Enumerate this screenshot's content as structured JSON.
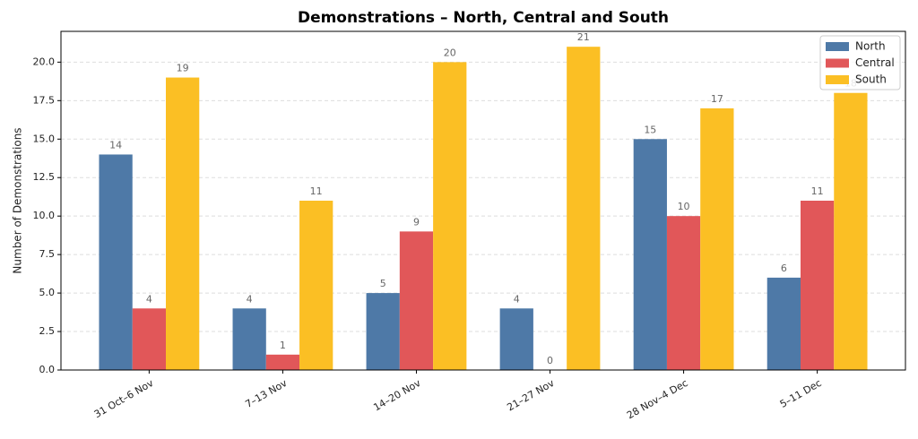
{
  "chart_data": {
    "type": "bar",
    "title": "Demonstrations – North, Central and South",
    "y_label": "Number of Demonstrations",
    "categories": [
      "31 Oct–6 Nov",
      "7–13 Nov",
      "14–20 Nov",
      "21–27 Nov",
      "28 Nov–4 Dec",
      "5–11 Dec"
    ],
    "series": [
      {
        "name": "North",
        "color": "#4e79a7",
        "values": [
          14,
          4,
          5,
          4,
          15,
          6
        ]
      },
      {
        "name": "Central",
        "color": "#e15759",
        "values": [
          4,
          1,
          9,
          0,
          10,
          11
        ]
      },
      {
        "name": "South",
        "color": "#fbbf24",
        "values": [
          19,
          11,
          20,
          21,
          17,
          18
        ]
      }
    ],
    "ylim": [
      0,
      22
    ],
    "yticks": [
      {
        "value": 0,
        "label": "0.0"
      },
      {
        "value": 2.5,
        "label": "2.5"
      },
      {
        "value": 5,
        "label": "5.0"
      },
      {
        "value": 7.5,
        "label": "7.5"
      },
      {
        "value": 10,
        "label": "10.0"
      },
      {
        "value": 12.5,
        "label": "12.5"
      },
      {
        "value": 15,
        "label": "15.0"
      },
      {
        "value": 17.5,
        "label": "17.5"
      },
      {
        "value": 20,
        "label": "20.0"
      }
    ],
    "grid": true,
    "legend": "upper-right",
    "show_value_labels": true
  }
}
